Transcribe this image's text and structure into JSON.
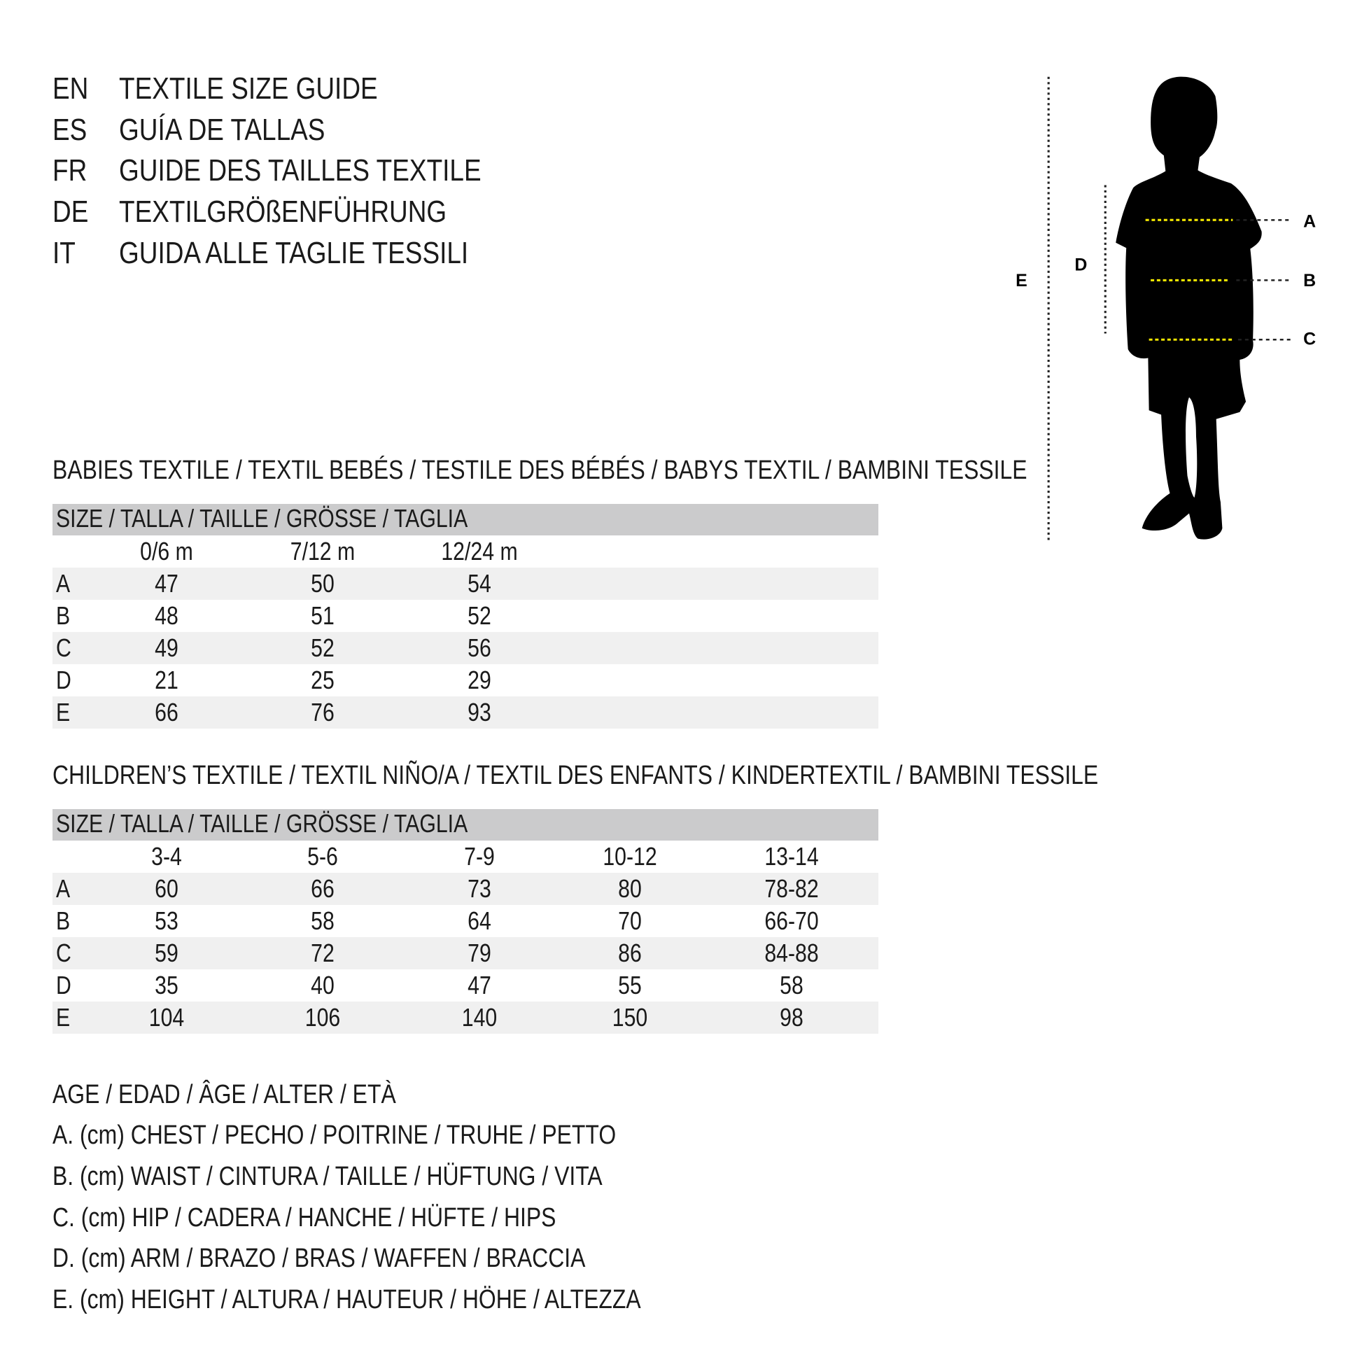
{
  "titles": [
    {
      "code": "EN",
      "text": "TEXTILE SIZE GUIDE"
    },
    {
      "code": "ES",
      "text": "GUÍA DE TALLAS"
    },
    {
      "code": "FR",
      "text": "GUIDE DES TAILLES TEXTILE"
    },
    {
      "code": "DE",
      "text": "TEXTILGRÖßENFÜHRUNG"
    },
    {
      "code": "IT",
      "text": "GUIDA ALLE TAGLIE TESSILI"
    }
  ],
  "babies": {
    "heading": "BABIES TEXTILE / TEXTIL BEBÉS / TESTILE DES BÉBÉS / BABYS TEXTIL / BAMBINI TESSILE",
    "size_header": "SIZE / TALLA / TAILLE / GRÖSSE / TAGLIA",
    "columns": [
      "0/6 m",
      "7/12 m",
      "12/24 m"
    ],
    "rows": [
      {
        "label": "A",
        "values": [
          "47",
          "50",
          "54"
        ]
      },
      {
        "label": "B",
        "values": [
          "48",
          "51",
          "52"
        ]
      },
      {
        "label": "C",
        "values": [
          "49",
          "52",
          "56"
        ]
      },
      {
        "label": "D",
        "values": [
          "21",
          "25",
          "29"
        ]
      },
      {
        "label": "E",
        "values": [
          "66",
          "76",
          "93"
        ]
      }
    ]
  },
  "children": {
    "heading": "CHILDREN’S TEXTILE / TEXTIL NIÑO/A / TEXTIL DES ENFANTS / KINDERTEXTIL / BAMBINI TESSILE",
    "size_header": "SIZE / TALLA / TAILLE / GRÖSSE / TAGLIA",
    "columns": [
      "3-4",
      "5-6",
      "7-9",
      "10-12",
      "13-14"
    ],
    "rows": [
      {
        "label": "A",
        "values": [
          "60",
          "66",
          "73",
          "80",
          "78-82"
        ]
      },
      {
        "label": "B",
        "values": [
          "53",
          "58",
          "64",
          "70",
          "66-70"
        ]
      },
      {
        "label": "C",
        "values": [
          "59",
          "72",
          "79",
          "86",
          "84-88"
        ]
      },
      {
        "label": "D",
        "values": [
          "35",
          "40",
          "47",
          "55",
          "58"
        ]
      },
      {
        "label": "E",
        "values": [
          "104",
          "106",
          "140",
          "150",
          "98"
        ]
      }
    ]
  },
  "legend": [
    "AGE / EDAD / ÂGE / ALTER / ETÀ",
    "A. (cm) CHEST / PECHO / POITRINE / TRUHE / PETTO",
    "B. (cm) WAIST / CINTURA / TAILLE / HÜFTUNG / VITA",
    "C. (cm) HIP / CADERA / HANCHE / HÜFTE / HIPS",
    "D. (cm) ARM / BRAZO / BRAS / WAFFEN / BRACCIA",
    "E. (cm) HEIGHT / ALTURA / HAUTEUR / HÖHE / ALTEZZA"
  ],
  "figure": {
    "labels": {
      "A": "A",
      "B": "B",
      "C": "C",
      "D": "D",
      "E": "E"
    },
    "icon": "child-silhouette-icon",
    "colors": {
      "measure_line": "#f2e600",
      "silhouette": "#000000",
      "header_band": "#cbcbcc",
      "row_shade": "#f0f0f0"
    }
  }
}
